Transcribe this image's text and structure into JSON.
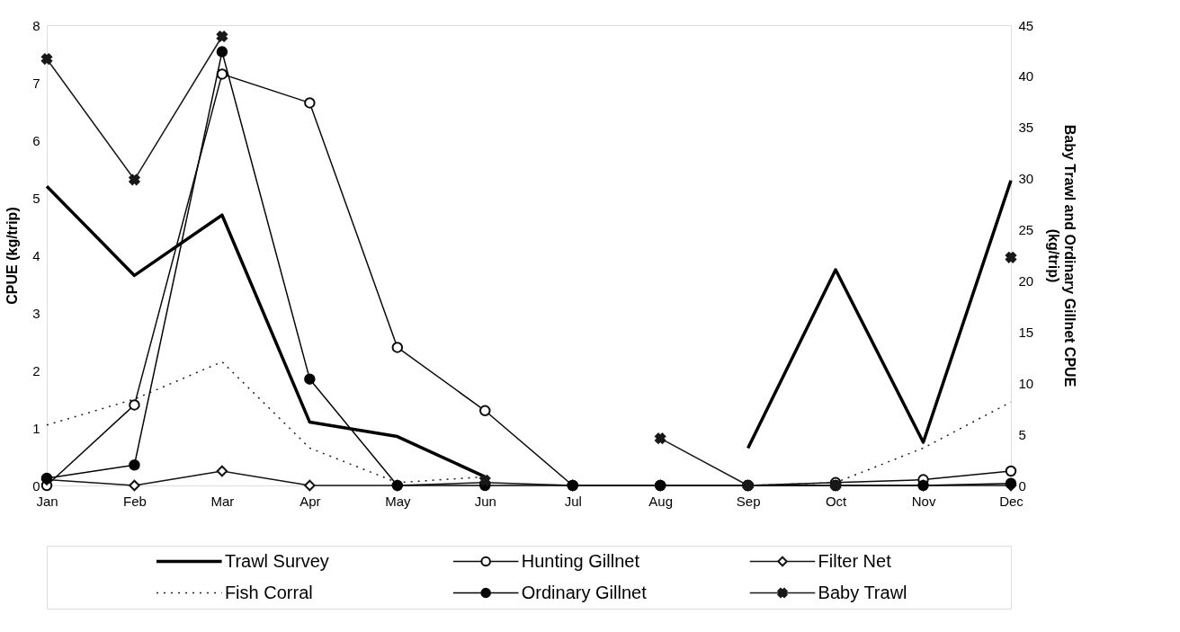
{
  "chart_data": {
    "type": "line",
    "ylabel": "CPUE (kg/trip)",
    "y2label": "Baby Trawl and Ordinary Gillnet CPUE\n(kg/trip)",
    "categories": [
      "Jan",
      "Feb",
      "Mar",
      "Apr",
      "May",
      "Jun",
      "Jul",
      "Aug",
      "Sep",
      "Oct",
      "Nov",
      "Dec"
    ],
    "ylim": [
      0,
      8
    ],
    "yticks": [
      0,
      1,
      2,
      3,
      4,
      5,
      6,
      7,
      8
    ],
    "y2lim": [
      0,
      45
    ],
    "y2ticks": [
      0,
      5,
      10,
      15,
      20,
      25,
      30,
      35,
      40,
      45
    ],
    "grid": false,
    "legend": "bottom",
    "series": [
      {
        "name": "Trawl Survey",
        "color": "#000000",
        "marker": "none",
        "line_style": "solid",
        "values": [
          5.2,
          3.65,
          4.7,
          1.1,
          0.85,
          0.15,
          null,
          null,
          0.65,
          3.75,
          0.75,
          5.3
        ]
      },
      {
        "name": "Hunting Gillnet",
        "color": "#0a0a0a",
        "marker": "circle",
        "line_style": "solid",
        "values": [
          0,
          1.4,
          7.15,
          6.65,
          2.4,
          1.3,
          0,
          0,
          0,
          0.05,
          0.1,
          0.25
        ]
      },
      {
        "name": "Filter Net",
        "color": "#141414",
        "marker": "diamond",
        "line_style": "solid",
        "values": [
          0.1,
          0,
          0.25,
          0,
          0,
          0.05,
          0,
          0,
          0,
          0,
          0,
          0
        ]
      },
      {
        "name": "Fish Corral",
        "color": "#1e1e1e",
        "marker": "none",
        "line_style": "dotted",
        "values": [
          1.05,
          1.5,
          2.15,
          0.65,
          0.05,
          0.15,
          null,
          null,
          0,
          0.05,
          0.65,
          1.45
        ]
      },
      {
        "name": "Ordinary Gillnet",
        "color": "#050505",
        "marker": "circle",
        "line_style": "solid",
        "axis": "y2",
        "values": [
          0.7,
          2,
          42.4,
          10.4,
          0,
          0,
          0,
          0,
          0,
          0,
          0,
          0.2
        ]
      },
      {
        "name": "Baby Trawl",
        "color": "#191919",
        "marker": "cross",
        "line_style": "solid",
        "axis": "y2",
        "values": [
          41.7,
          29.9,
          43.9,
          null,
          null,
          0.5,
          null,
          4.6,
          0,
          0,
          null,
          22.3
        ]
      }
    ]
  }
}
